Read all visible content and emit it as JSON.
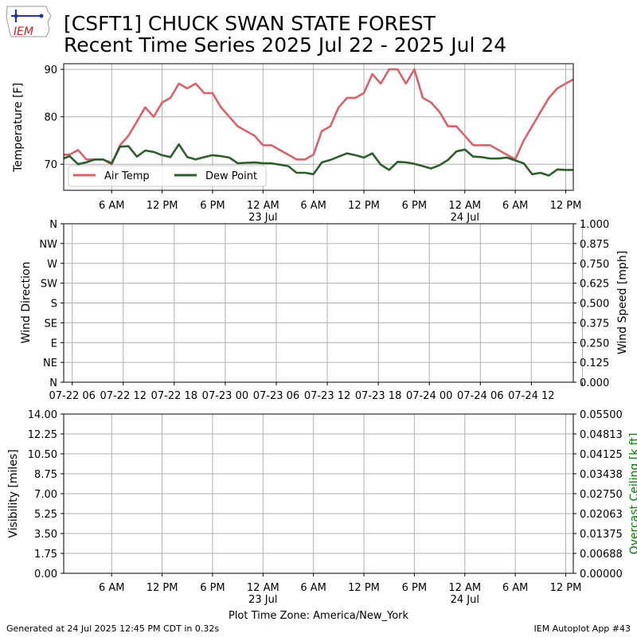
{
  "header": {
    "logo_text": "IEM",
    "title_line1": "[CSFT1] CHUCK SWAN STATE FOREST",
    "title_line2": "Recent Time Series 2025 Jul 22 - 2025 Jul 24"
  },
  "footer": {
    "generated": "Generated at 24 Jul 2025 12:45 PM CDT in 0.32s",
    "app": "IEM Autoplot App #43"
  },
  "colors": {
    "air_temp": "#d9626b",
    "dew_point": "#2e5e2e",
    "ceiling_label": "#008000",
    "grid": "#b0b0b0"
  },
  "chart_data": [
    {
      "type": "line",
      "panel": "temperature",
      "ylabel": "Temperature [F]",
      "ylim": [
        64.5,
        91.2
      ],
      "yticks": [
        70,
        80,
        90
      ],
      "xlim_hours": [
        0.3,
        60.9
      ],
      "xticks": {
        "hours": [
          6,
          12,
          18,
          24,
          30,
          36,
          42,
          48,
          54,
          60
        ],
        "labels": [
          "6 AM",
          "12 PM",
          "6 PM",
          "12 AM",
          "6 AM",
          "12 PM",
          "6 PM",
          "12 AM",
          "6 AM",
          "12 PM"
        ],
        "sublabels": [
          "",
          "",
          "",
          "23 Jul",
          "",
          "",
          "",
          "24 Jul",
          "",
          ""
        ]
      },
      "grid": true,
      "legend": "lower-left",
      "series": [
        {
          "name": "Air Temp",
          "x_hours": [
            0,
            1,
            2,
            3,
            4,
            5,
            6,
            7,
            8,
            9,
            10,
            11,
            12,
            13,
            14,
            15,
            16,
            17,
            18,
            19,
            20,
            21,
            22,
            23,
            24,
            25,
            26,
            27,
            28,
            29,
            30,
            31,
            32,
            33,
            34,
            35,
            36,
            37,
            38,
            39,
            40,
            41,
            42,
            43,
            44,
            45,
            46,
            47,
            48,
            49,
            50,
            51,
            52,
            53,
            54,
            55,
            56,
            57,
            58,
            59,
            60,
            61
          ],
          "values": [
            72,
            72,
            73,
            71,
            71,
            71,
            70,
            74,
            76,
            79,
            82,
            80,
            83,
            84,
            87,
            86,
            87,
            85,
            85,
            82,
            80,
            78,
            77,
            76,
            74,
            74,
            73,
            72,
            71,
            71,
            72,
            77,
            78,
            82,
            84,
            84,
            85,
            89,
            87,
            90,
            90,
            87,
            90,
            84,
            83,
            81,
            78,
            78,
            76,
            74,
            74,
            74,
            73,
            72,
            71,
            75,
            78,
            81,
            84,
            86,
            87,
            88
          ]
        },
        {
          "name": "Dew Point",
          "x_hours": [
            0,
            1,
            2,
            3,
            4,
            5,
            6,
            7,
            8,
            9,
            10,
            11,
            12,
            13,
            14,
            15,
            16,
            17,
            18,
            19,
            20,
            21,
            22,
            23,
            24,
            25,
            26,
            27,
            28,
            29,
            30,
            31,
            32,
            33,
            34,
            35,
            36,
            37,
            38,
            39,
            40,
            41,
            42,
            43,
            44,
            45,
            46,
            47,
            48,
            49,
            50,
            51,
            52,
            53,
            54,
            55,
            56,
            57,
            58,
            59,
            60,
            61
          ],
          "values": [
            71,
            71.7,
            70,
            70.4,
            71,
            71,
            70.2,
            73.7,
            73.8,
            71.6,
            72.9,
            72.6,
            71.9,
            71.5,
            74.2,
            71.5,
            71,
            71.5,
            71.9,
            71.7,
            71.4,
            70.2,
            70.3,
            70.4,
            70.2,
            70.2,
            69.9,
            69.6,
            68.2,
            68.2,
            67.9,
            70.4,
            70.9,
            71.6,
            72.3,
            71.9,
            71.4,
            72.3,
            69.9,
            68.8,
            70.5,
            70.4,
            70.1,
            69.6,
            69.1,
            69.8,
            70.9,
            72.7,
            73.1,
            71.6,
            71.5,
            71.2,
            71.2,
            71.4,
            70.8,
            70.2,
            67.9,
            68.2,
            67.6,
            68.9,
            68.8,
            68.8
          ]
        }
      ]
    },
    {
      "type": "scatter",
      "panel": "wind",
      "ylabel": "Wind Direction",
      "ylabel_right": "Wind Speed [mph]",
      "ylim": [
        0,
        360
      ],
      "direction_ticks": [
        "N",
        "NE",
        "E",
        "SE",
        "S",
        "SW",
        "W",
        "NW",
        "N"
      ],
      "right_ylim": [
        0,
        1
      ],
      "right_ticks": [
        "0.000",
        "0.125",
        "0.250",
        "0.375",
        "0.500",
        "0.625",
        "0.750",
        "0.875",
        "1.000"
      ],
      "xticks": {
        "hours": [
          0,
          6,
          12,
          18,
          24,
          30,
          36,
          42,
          48,
          54,
          60
        ],
        "labels": [
          "07-22 06",
          "07-22 12",
          "07-22 18",
          "07-23 00",
          "07-23 06",
          "07-23 12",
          "07-23 18",
          "07-24 00",
          "07-24 06",
          "07-24 12",
          ""
        ]
      },
      "grid": true,
      "series": []
    },
    {
      "type": "line",
      "panel": "visibility",
      "ylabel": "Visibility [miles]",
      "ylabel_right": "Overcast Ceiling [k ft]",
      "ylim": [
        0,
        14
      ],
      "yticks": [
        "0.00",
        "1.75",
        "3.50",
        "5.25",
        "7.00",
        "8.75",
        "10.50",
        "12.25",
        "14.00"
      ],
      "right_ylim": [
        0,
        0.055
      ],
      "right_ticks": [
        "0.00000",
        "0.00688",
        "0.01375",
        "0.02063",
        "0.02750",
        "0.03438",
        "0.04125",
        "0.04813",
        "0.05500"
      ],
      "xticks": {
        "hours": [
          6,
          12,
          18,
          24,
          30,
          36,
          42,
          48,
          54,
          60
        ],
        "labels": [
          "6 AM",
          "12 PM",
          "6 PM",
          "12 AM",
          "6 AM",
          "12 PM",
          "6 PM",
          "12 AM",
          "6 AM",
          "12 PM"
        ],
        "sublabels": [
          "",
          "",
          "",
          "23 Jul",
          "",
          "",
          "",
          "24 Jul",
          "",
          ""
        ]
      },
      "xlabel": "Plot Time Zone: America/New_York",
      "grid": true,
      "series": []
    }
  ]
}
